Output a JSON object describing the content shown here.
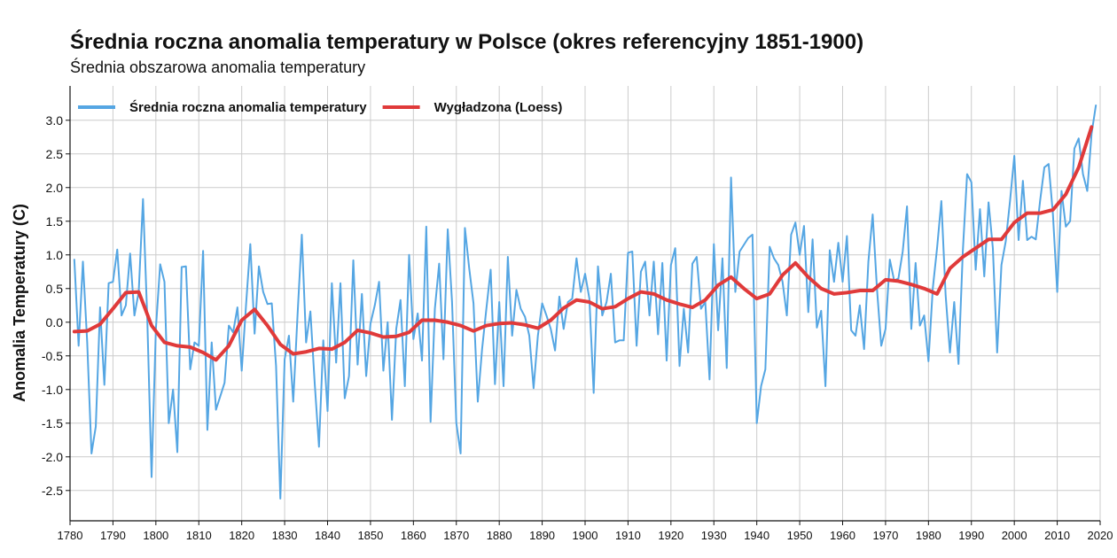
{
  "chart_data": {
    "type": "line",
    "title": "Średnia roczna anomalia temperatury w Polsce (okres referencyjny 1851-1900)",
    "subtitle": "Średnia obszarowa anomalia temperatury",
    "y_label": "Anomalia Temperatury (C)",
    "grid": true,
    "legend": "upper left",
    "xlim": [
      1780,
      2020
    ],
    "xticks": [
      1780,
      1790,
      1800,
      1810,
      1820,
      1830,
      1840,
      1850,
      1860,
      1870,
      1880,
      1890,
      1900,
      1910,
      1920,
      1930,
      1940,
      1950,
      1960,
      1970,
      1980,
      1990,
      2000,
      2010,
      2020
    ],
    "ylim": [
      -2.95,
      3.51
    ],
    "yticks": [
      -2.5,
      {
        "value": -2,
        "label": "-2.0"
      },
      -1.5,
      {
        "value": -1,
        "label": "-1.0"
      },
      -0.5,
      {
        "value": 0,
        "label": "0.0"
      },
      0.5,
      {
        "value": 1,
        "label": "1.0"
      },
      1.5,
      {
        "value": 2,
        "label": "2.0"
      },
      2.5,
      {
        "value": 3,
        "label": "3.0"
      }
    ],
    "series": [
      {
        "name": "Średnia roczna anomalia temperatury",
        "color": "#55a6e3",
        "width": 2,
        "x": [
          1781,
          1782,
          1783,
          1784,
          1785,
          1786,
          1787,
          1788,
          1789,
          1790,
          1791,
          1792,
          1793,
          1794,
          1795,
          1796,
          1797,
          1798,
          1799,
          1800,
          1801,
          1802,
          1803,
          1804,
          1805,
          1806,
          1807,
          1808,
          1809,
          1810,
          1811,
          1812,
          1813,
          1814,
          1815,
          1816,
          1817,
          1818,
          1819,
          1820,
          1821,
          1822,
          1823,
          1824,
          1825,
          1826,
          1827,
          1828,
          1829,
          1830,
          1831,
          1832,
          1833,
          1834,
          1835,
          1836,
          1837,
          1838,
          1839,
          1840,
          1841,
          1842,
          1843,
          1844,
          1845,
          1846,
          1847,
          1848,
          1849,
          1850,
          1851,
          1852,
          1853,
          1854,
          1855,
          1856,
          1857,
          1858,
          1859,
          1860,
          1861,
          1862,
          1863,
          1864,
          1865,
          1866,
          1867,
          1868,
          1869,
          1870,
          1871,
          1872,
          1873,
          1874,
          1875,
          1876,
          1877,
          1878,
          1879,
          1880,
          1881,
          1882,
          1883,
          1884,
          1885,
          1886,
          1887,
          1888,
          1889,
          1890,
          1891,
          1892,
          1893,
          1894,
          1895,
          1896,
          1897,
          1898,
          1899,
          1900,
          1901,
          1902,
          1903,
          1904,
          1905,
          1906,
          1907,
          1908,
          1909,
          1910,
          1911,
          1912,
          1913,
          1914,
          1915,
          1916,
          1917,
          1918,
          1919,
          1920,
          1921,
          1922,
          1923,
          1924,
          1925,
          1926,
          1927,
          1928,
          1929,
          1930,
          1931,
          1932,
          1933,
          1934,
          1935,
          1936,
          1937,
          1938,
          1939,
          1940,
          1941,
          1942,
          1943,
          1944,
          1945,
          1946,
          1947,
          1948,
          1949,
          1950,
          1951,
          1952,
          1953,
          1954,
          1955,
          1956,
          1957,
          1958,
          1959,
          1960,
          1961,
          1962,
          1963,
          1964,
          1965,
          1966,
          1967,
          1968,
          1969,
          1970,
          1971,
          1972,
          1973,
          1974,
          1975,
          1976,
          1977,
          1978,
          1979,
          1980,
          1981,
          1982,
          1983,
          1984,
          1985,
          1986,
          1987,
          1988,
          1989,
          1990,
          1991,
          1992,
          1993,
          1994,
          1995,
          1996,
          1997,
          1998,
          1999,
          2000,
          2001,
          2002,
          2003,
          2004,
          2005,
          2006,
          2007,
          2008,
          2009,
          2010,
          2011,
          2012,
          2013,
          2014,
          2015,
          2016,
          2017,
          2018,
          2019
        ],
        "values": [
          0.93,
          -0.35,
          0.9,
          -0.3,
          -1.95,
          -1.55,
          0.22,
          -0.93,
          0.58,
          0.6,
          1.08,
          0.1,
          0.25,
          1.02,
          0.1,
          0.45,
          1.83,
          0.05,
          -2.3,
          -0.1,
          0.86,
          0.6,
          -1.5,
          -1.0,
          -1.93,
          0.82,
          0.83,
          -0.7,
          -0.3,
          -0.35,
          1.06,
          -1.6,
          -0.3,
          -1.3,
          -1.1,
          -0.9,
          -0.05,
          -0.15,
          0.22,
          -0.72,
          0.25,
          1.16,
          -0.17,
          0.83,
          0.45,
          0.27,
          0.28,
          -0.65,
          -2.62,
          -0.55,
          -0.2,
          -1.18,
          0.1,
          1.3,
          -0.3,
          0.16,
          -0.9,
          -1.85,
          -0.27,
          -1.32,
          0.58,
          -0.6,
          0.58,
          -1.13,
          -0.8,
          0.92,
          -0.63,
          0.42,
          -0.8,
          -0.02,
          0.25,
          0.6,
          -0.72,
          0.0,
          -1.45,
          -0.1,
          0.33,
          -0.95,
          1.0,
          -0.25,
          0.13,
          -0.57,
          1.42,
          -1.48,
          0.2,
          0.87,
          -0.55,
          1.38,
          0.3,
          -1.5,
          -1.95,
          1.4,
          0.8,
          0.28,
          -1.18,
          -0.4,
          0.2,
          0.78,
          -0.92,
          0.3,
          -0.95,
          0.97,
          -0.2,
          0.48,
          0.2,
          0.08,
          -0.2,
          -0.98,
          -0.2,
          0.28,
          0.1,
          -0.1,
          -0.42,
          0.38,
          -0.1,
          0.3,
          0.35,
          0.95,
          0.45,
          0.72,
          0.35,
          -1.05,
          0.83,
          0.1,
          0.3,
          0.72,
          -0.3,
          -0.27,
          -0.27,
          1.03,
          1.05,
          -0.35,
          0.75,
          0.9,
          0.1,
          0.9,
          -0.18,
          0.88,
          -0.57,
          0.85,
          1.1,
          -0.65,
          0.2,
          -0.45,
          0.87,
          0.97,
          0.2,
          0.3,
          -0.85,
          1.16,
          -0.12,
          0.95,
          -0.68,
          2.15,
          0.45,
          1.05,
          1.15,
          1.25,
          1.3,
          -1.5,
          -0.95,
          -0.7,
          1.12,
          0.95,
          0.85,
          0.6,
          0.1,
          1.3,
          1.48,
          1.0,
          1.43,
          0.15,
          1.23,
          -0.08,
          0.17,
          -0.95,
          1.07,
          0.6,
          1.18,
          0.6,
          1.28,
          -0.12,
          -0.2,
          0.25,
          -0.4,
          0.9,
          1.6,
          0.5,
          -0.35,
          -0.1,
          0.93,
          0.62,
          0.65,
          1.05,
          1.72,
          -0.1,
          0.88,
          -0.05,
          0.1,
          -0.58,
          0.5,
          1.1,
          1.8,
          0.4,
          -0.45,
          0.3,
          -0.62,
          1.05,
          2.2,
          2.08,
          0.78,
          1.68,
          0.68,
          1.78,
          1.1,
          -0.45,
          0.85,
          1.2,
          1.8,
          2.47,
          1.22,
          2.1,
          1.22,
          1.27,
          1.23,
          1.8,
          2.3,
          2.35,
          1.6,
          0.45,
          1.95,
          1.42,
          1.5,
          2.58,
          2.73,
          2.2,
          1.95,
          2.8,
          3.22
        ]
      },
      {
        "name": "Wygładzona (Loess)",
        "color": "#e03a3a",
        "width": 4,
        "x": [
          1781,
          1784,
          1787,
          1790,
          1793,
          1796,
          1799,
          1802,
          1805,
          1808,
          1811,
          1814,
          1817,
          1820,
          1823,
          1826,
          1829,
          1832,
          1835,
          1838,
          1841,
          1844,
          1847,
          1850,
          1853,
          1856,
          1859,
          1862,
          1865,
          1868,
          1871,
          1874,
          1877,
          1880,
          1883,
          1886,
          1889,
          1892,
          1895,
          1898,
          1901,
          1904,
          1907,
          1910,
          1913,
          1916,
          1919,
          1922,
          1925,
          1928,
          1931,
          1934,
          1937,
          1940,
          1943,
          1946,
          1949,
          1952,
          1955,
          1958,
          1961,
          1964,
          1967,
          1970,
          1973,
          1976,
          1979,
          1982,
          1985,
          1988,
          1991,
          1994,
          1997,
          2000,
          2003,
          2006,
          2009,
          2012,
          2015,
          2018
        ],
        "values": [
          -0.14,
          -0.13,
          -0.03,
          0.2,
          0.44,
          0.45,
          -0.05,
          -0.3,
          -0.35,
          -0.37,
          -0.45,
          -0.56,
          -0.35,
          0.03,
          0.19,
          -0.05,
          -0.33,
          -0.47,
          -0.44,
          -0.39,
          -0.4,
          -0.3,
          -0.12,
          -0.16,
          -0.22,
          -0.21,
          -0.15,
          0.03,
          0.03,
          0.0,
          -0.05,
          -0.13,
          -0.05,
          -0.02,
          -0.01,
          -0.04,
          -0.09,
          0.03,
          0.21,
          0.33,
          0.3,
          0.2,
          0.23,
          0.35,
          0.45,
          0.42,
          0.33,
          0.27,
          0.22,
          0.33,
          0.55,
          0.67,
          0.5,
          0.35,
          0.42,
          0.7,
          0.88,
          0.67,
          0.5,
          0.42,
          0.44,
          0.47,
          0.47,
          0.63,
          0.61,
          0.56,
          0.5,
          0.42,
          0.8,
          0.97,
          1.1,
          1.23,
          1.23,
          1.48,
          1.62,
          1.62,
          1.67,
          1.9,
          2.3,
          2.9
        ]
      }
    ]
  }
}
